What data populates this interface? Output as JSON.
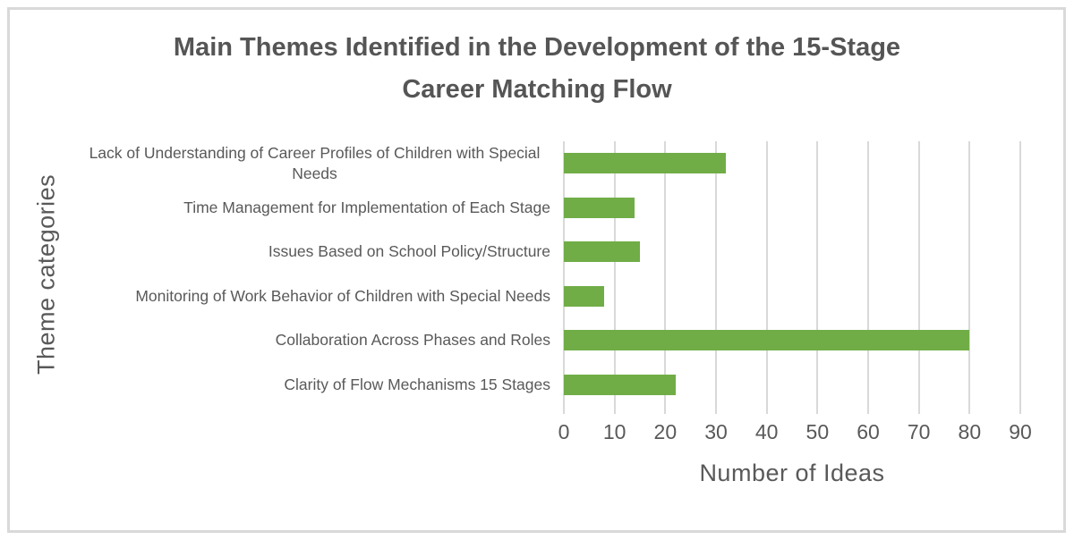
{
  "chart_data": {
    "type": "bar",
    "orientation": "horizontal",
    "title": "Main Themes Identified in the Development of the 15-Stage Career Matching Flow",
    "xlabel": "Number of Ideas",
    "ylabel": "Theme categories",
    "categories": [
      "Lack of Understanding of Career Profiles of Children with Special Needs",
      "Time Management for Implementation of Each Stage",
      "Issues Based on School Policy/Structure",
      "Monitoring of Work Behavior of Children with Special Needs",
      "Collaboration Across Phases and Roles",
      "Clarity of Flow Mechanisms 15 Stages"
    ],
    "values": [
      32,
      14,
      15,
      8,
      80,
      22
    ],
    "xlim": [
      0,
      90
    ],
    "xticks": [
      0,
      10,
      20,
      30,
      40,
      50,
      60,
      70,
      80,
      90
    ],
    "grid": "vertical",
    "legend": "none",
    "colors": {
      "bar": "#70ad47",
      "gridline": "#d9d9d9",
      "text": "#595959",
      "border": "#d9d9d9",
      "background": "#ffffff"
    }
  }
}
